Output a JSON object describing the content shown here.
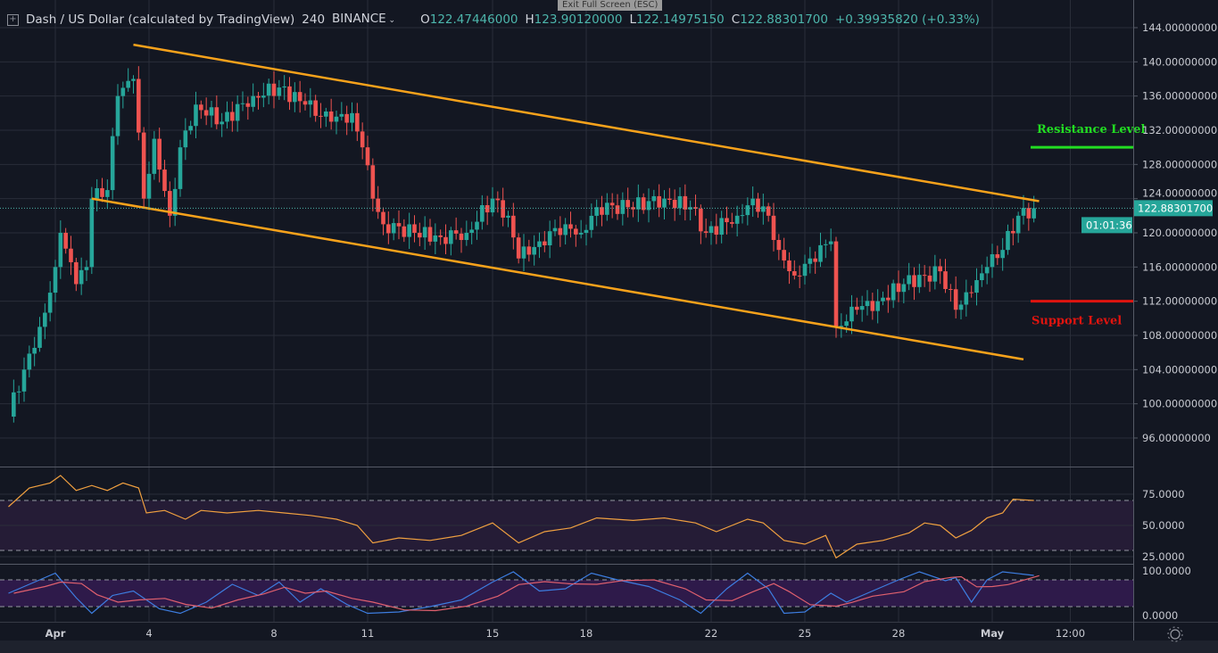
{
  "header": {
    "symbol": "Dash / US Dollar (calculated by TradingView)",
    "interval": "240",
    "exchange": "BINANCE",
    "o_label": "O",
    "open": "122.47446000",
    "h_label": "H",
    "high": "123.90120000",
    "l_label": "L",
    "low": "122.14975150",
    "c_label": "C",
    "close": "122.88301700",
    "change": "+0.39935820 (+0.33%)"
  },
  "tooltip": "Exit Full Screen (ESC)",
  "colors": {
    "background": "#131722",
    "up": "#26a69a",
    "down": "#ef5350",
    "trendline": "#f7a21b",
    "resistance": "#22dd22",
    "support": "#e0140f",
    "rsi": "#f0a040",
    "stoch_k": "#3d7de0",
    "stoch_d": "#e0606e"
  },
  "chart_data": {
    "type": "candlestick",
    "price_axis": {
      "ticks": [
        "144.00000000",
        "140.00000000",
        "136.00000000",
        "132.00000000",
        "128.00000000",
        "124.00000000",
        "120.00000000",
        "116.00000000",
        "112.00000000",
        "108.00000000",
        "104.00000000",
        "100.00000000",
        "96.00000000"
      ],
      "ylim": [
        94,
        146
      ]
    },
    "time_axis": {
      "ticks": [
        {
          "label": "Apr",
          "t": "Apr 1 00:00"
        },
        {
          "label": "4",
          "t": "Apr 4 00:00"
        },
        {
          "label": "8",
          "t": "Apr 8 00:00"
        },
        {
          "label": "11",
          "t": "Apr 11 00:00"
        },
        {
          "label": "15",
          "t": "Apr 15 00:00"
        },
        {
          "label": "18",
          "t": "Apr 18 00:00"
        },
        {
          "label": "22",
          "t": "Apr 22 00:00"
        },
        {
          "label": "25",
          "t": "Apr 25 00:00"
        },
        {
          "label": "28",
          "t": "Apr 28 00:00"
        },
        {
          "label": "May",
          "t": "May 1 00:00"
        },
        {
          "label": "12:00",
          "t": "May 3 12:00"
        }
      ]
    },
    "last_price": "122.88301700",
    "countdown": "01:01:36",
    "closes": [
      [
        "Mar 30 12:00",
        99
      ],
      [
        "Mar 31 00:00",
        104
      ],
      [
        "Mar 31 12:00",
        109
      ],
      [
        "Mar 31 20:00",
        113
      ],
      [
        "Apr 1 00:00",
        116
      ],
      [
        "Apr 1 04:00",
        120
      ],
      [
        "Apr 1 16:00",
        114
      ],
      [
        "Apr 2 00:00",
        116
      ],
      [
        "Apr 2 04:00",
        124
      ],
      [
        "Apr 2 16:00",
        125
      ],
      [
        "Apr 3 00:00",
        136
      ],
      [
        "Apr 3 12:00",
        138
      ],
      [
        "Apr 3 20:00",
        124
      ],
      [
        "Apr 4 04:00",
        131
      ],
      [
        "Apr 4 16:00",
        122
      ],
      [
        "Apr 5 00:00",
        130
      ],
      [
        "Apr 5 12:00",
        135
      ],
      [
        "Apr 6 08:00",
        133
      ],
      [
        "Apr 7 08:00",
        136
      ],
      [
        "Apr 8 04:00",
        137
      ],
      [
        "Apr 9 00:00",
        135
      ],
      [
        "Apr 9 20:00",
        133
      ],
      [
        "Apr 10 12:00",
        134
      ],
      [
        "Apr 10 20:00",
        130
      ],
      [
        "Apr 11 04:00",
        124
      ],
      [
        "Apr 11 12:00",
        121
      ],
      [
        "Apr 12 12:00",
        120
      ],
      [
        "Apr 13 08:00",
        119.5
      ],
      [
        "Apr 14 04:00",
        120
      ],
      [
        "Apr 15 00:00",
        124
      ],
      [
        "Apr 15 12:00",
        122
      ],
      [
        "Apr 15 20:00",
        117
      ],
      [
        "Apr 16 12:00",
        119
      ],
      [
        "Apr 17 08:00",
        121
      ],
      [
        "Apr 17 20:00",
        120
      ],
      [
        "Apr 18 08:00",
        123
      ],
      [
        "Apr 19 08:00",
        123
      ],
      [
        "Apr 20 12:00",
        124
      ],
      [
        "Apr 21 08:00",
        123
      ],
      [
        "Apr 21 20:00",
        120
      ],
      [
        "Apr 22 20:00",
        122
      ],
      [
        "Apr 23 08:00",
        124
      ],
      [
        "Apr 23 20:00",
        122
      ],
      [
        "Apr 24 04:00",
        118
      ],
      [
        "Apr 24 16:00",
        115
      ],
      [
        "Apr 25 04:00",
        117
      ],
      [
        "Apr 25 20:00",
        119
      ],
      [
        "Apr 26 00:00",
        109
      ],
      [
        "Apr 26 16:00",
        111
      ],
      [
        "Apr 27 08:00",
        112
      ],
      [
        "Apr 28 04:00",
        114
      ],
      [
        "Apr 28 20:00",
        115
      ],
      [
        "Apr 29 08:00",
        115.5
      ],
      [
        "Apr 29 20:00",
        111
      ],
      [
        "Apr 30 08:00",
        113
      ],
      [
        "Apr 30 20:00",
        116
      ],
      [
        "May 1 08:00",
        118
      ],
      [
        "May 1 20:00",
        122
      ],
      [
        "May 2 08:00",
        122.88
      ]
    ],
    "trendlines": [
      {
        "name": "upper",
        "from": [
          "Apr 3 12:00",
          142
        ],
        "to": [
          "May 2 12:00",
          123.7
        ]
      },
      {
        "name": "lower",
        "from": [
          "Apr 2 04:00",
          124
        ],
        "to": [
          "May 2 00:00",
          105.2
        ]
      }
    ],
    "levels": [
      {
        "label": "Resistance Level",
        "price": 130
      },
      {
        "label": "Support Level",
        "price": 112
      }
    ],
    "rsi": {
      "ticks": [
        "75.0000",
        "50.0000",
        "25.0000"
      ],
      "bands": [
        70,
        30
      ],
      "values": [
        [
          "Mar 30 12:00",
          65
        ],
        [
          "Mar 31 04:00",
          80
        ],
        [
          "Mar 31 20:00",
          84
        ],
        [
          "Apr 1 04:00",
          90
        ],
        [
          "Apr 1 16:00",
          78
        ],
        [
          "Apr 2 04:00",
          82
        ],
        [
          "Apr 2 16:00",
          78
        ],
        [
          "Apr 3 04:00",
          84
        ],
        [
          "Apr 3 16:00",
          80
        ],
        [
          "Apr 3 22:00",
          60
        ],
        [
          "Apr 4 12:00",
          62
        ],
        [
          "Apr 5 04:00",
          55
        ],
        [
          "Apr 5 16:00",
          62
        ],
        [
          "Apr 6 12:00",
          60
        ],
        [
          "Apr 7 12:00",
          62
        ],
        [
          "Apr 8 08:00",
          60
        ],
        [
          "Apr 9 04:00",
          58
        ],
        [
          "Apr 10 00:00",
          55
        ],
        [
          "Apr 10 16:00",
          50
        ],
        [
          "Apr 11 04:00",
          36
        ],
        [
          "Apr 12 00:00",
          40
        ],
        [
          "Apr 13 00:00",
          38
        ],
        [
          "Apr 14 00:00",
          42
        ],
        [
          "Apr 15 00:00",
          52
        ],
        [
          "Apr 15 20:00",
          36
        ],
        [
          "Apr 16 16:00",
          45
        ],
        [
          "Apr 17 12:00",
          48
        ],
        [
          "Apr 18 08:00",
          56
        ],
        [
          "Apr 19 12:00",
          54
        ],
        [
          "Apr 20 12:00",
          56
        ],
        [
          "Apr 21 12:00",
          52
        ],
        [
          "Apr 22 04:00",
          45
        ],
        [
          "Apr 23 04:00",
          55
        ],
        [
          "Apr 23 16:00",
          52
        ],
        [
          "Apr 24 08:00",
          38
        ],
        [
          "Apr 25 00:00",
          35
        ],
        [
          "Apr 25 16:00",
          42
        ],
        [
          "Apr 26 00:00",
          24
        ],
        [
          "Apr 26 16:00",
          35
        ],
        [
          "Apr 27 12:00",
          38
        ],
        [
          "Apr 28 08:00",
          44
        ],
        [
          "Apr 28 20:00",
          52
        ],
        [
          "Apr 29 08:00",
          50
        ],
        [
          "Apr 29 20:00",
          40
        ],
        [
          "Apr 30 08:00",
          46
        ],
        [
          "Apr 30 20:00",
          56
        ],
        [
          "May 1 08:00",
          60
        ],
        [
          "May 1 16:00",
          71
        ],
        [
          "May 2 08:00",
          70
        ]
      ]
    },
    "stoch": {
      "ticks": [
        "100.0000",
        "0.0000"
      ],
      "bands": [
        80,
        20
      ],
      "k": [
        [
          "Mar 30 12:00",
          50
        ],
        [
          "Mar 31 12:00",
          80
        ],
        [
          "Apr 1 00:00",
          95
        ],
        [
          "Apr 1 16:00",
          40
        ],
        [
          "Apr 2 04:00",
          5
        ],
        [
          "Apr 2 20:00",
          45
        ],
        [
          "Apr 3 12:00",
          55
        ],
        [
          "Apr 4 08:00",
          15
        ],
        [
          "Apr 5 00:00",
          5
        ],
        [
          "Apr 5 20:00",
          30
        ],
        [
          "Apr 6 16:00",
          70
        ],
        [
          "Apr 7 12:00",
          45
        ],
        [
          "Apr 8 04:00",
          75
        ],
        [
          "Apr 8 20:00",
          30
        ],
        [
          "Apr 9 12:00",
          60
        ],
        [
          "Apr 10 08:00",
          25
        ],
        [
          "Apr 11 00:00",
          5
        ],
        [
          "Apr 12 00:00",
          8
        ],
        [
          "Apr 13 00:00",
          20
        ],
        [
          "Apr 14 00:00",
          35
        ],
        [
          "Apr 15 00:00",
          75
        ],
        [
          "Apr 15 16:00",
          98
        ],
        [
          "Apr 16 12:00",
          55
        ],
        [
          "Apr 17 08:00",
          60
        ],
        [
          "Apr 18 04:00",
          95
        ],
        [
          "Apr 19 00:00",
          80
        ],
        [
          "Apr 20 00:00",
          65
        ],
        [
          "Apr 21 00:00",
          35
        ],
        [
          "Apr 21 16:00",
          5
        ],
        [
          "Apr 22 12:00",
          60
        ],
        [
          "Apr 23 04:00",
          95
        ],
        [
          "Apr 23 20:00",
          60
        ],
        [
          "Apr 24 08:00",
          5
        ],
        [
          "Apr 25 00:00",
          8
        ],
        [
          "Apr 25 20:00",
          50
        ],
        [
          "Apr 26 08:00",
          30
        ],
        [
          "Apr 27 00:00",
          50
        ],
        [
          "Apr 28 00:00",
          80
        ],
        [
          "Apr 28 16:00",
          98
        ],
        [
          "Apr 29 12:00",
          78
        ],
        [
          "Apr 29 20:00",
          85
        ],
        [
          "Apr 30 08:00",
          30
        ],
        [
          "Apr 30 20:00",
          80
        ],
        [
          "May 1 08:00",
          98
        ],
        [
          "May 2 08:00",
          90
        ]
      ]
    }
  }
}
